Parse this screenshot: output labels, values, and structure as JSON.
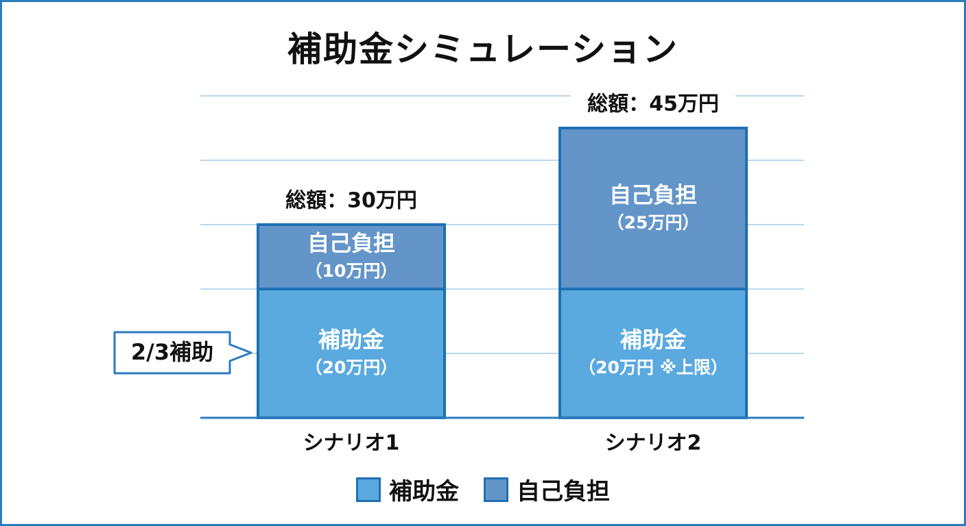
{
  "chart_data": {
    "type": "bar",
    "stacked": true,
    "title": "補助金シミュレーション",
    "categories": [
      "シナリオ1",
      "シナリオ2"
    ],
    "units": "万円",
    "ylim": [
      0,
      50
    ],
    "grid": true,
    "series": [
      {
        "name": "補助金",
        "color": "#5aa9df",
        "values": [
          20,
          20
        ],
        "labels": [
          "補助金",
          "補助金"
        ],
        "value_labels": [
          "（20万円）",
          "（20万円 ※上限）"
        ]
      },
      {
        "name": "自己負担",
        "color": "#6495c9",
        "values": [
          10,
          25
        ],
        "labels": [
          "自己負担",
          "自己負担"
        ],
        "value_labels": [
          "（10万円）",
          "（25万円）"
        ]
      }
    ],
    "totals": [
      "総額：30万円",
      "総額：45万円"
    ],
    "annotation": "2/3補助",
    "legend_position": "bottom"
  }
}
